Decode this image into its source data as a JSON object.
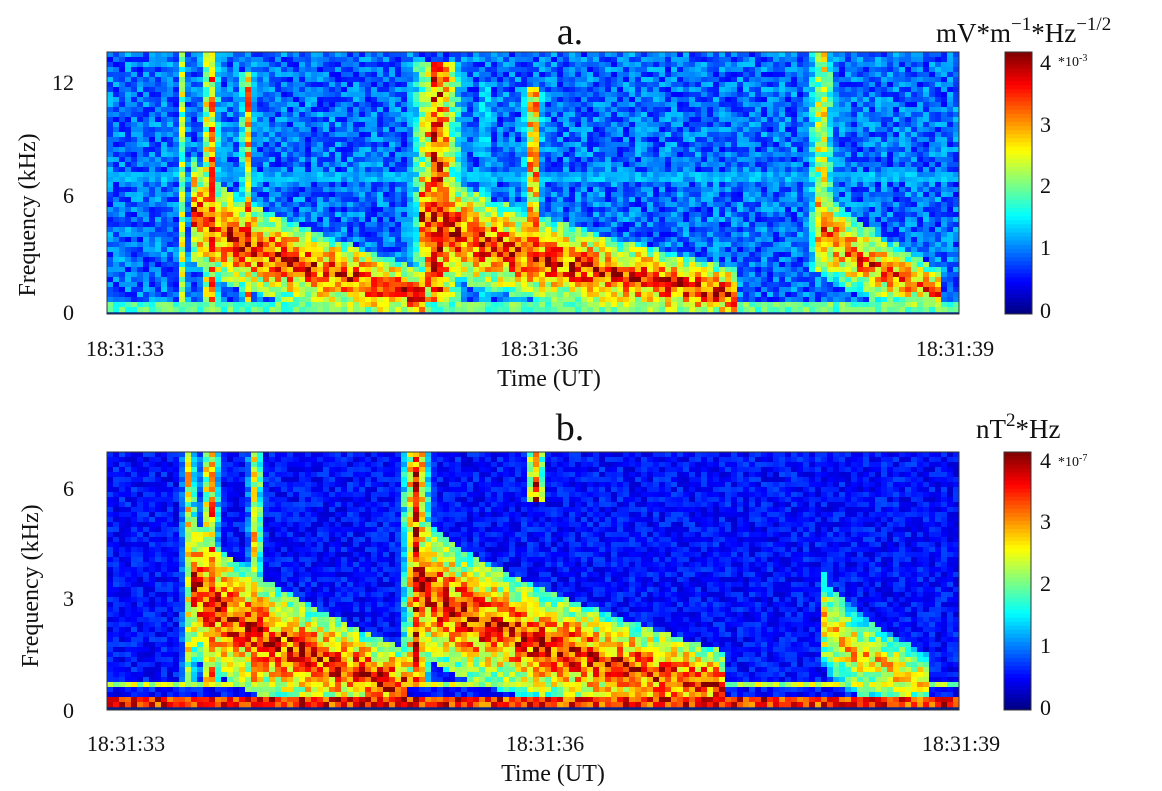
{
  "chart_data": [
    {
      "panel": "a",
      "type": "heatmap",
      "title": "a.",
      "xlabel": "Time (UT)",
      "ylabel": "Frequency (kHz)",
      "x_ticks": [
        "18:31:33",
        "18:31:36",
        "18:31:39"
      ],
      "xlim_seconds_utc": [
        "18:31:32.8",
        "18:31:39.0"
      ],
      "y_ticks": [
        0,
        6,
        12
      ],
      "ylim": [
        0,
        12.5
      ],
      "colorbar": {
        "unit_main": "mV",
        "unit_mid": "*m",
        "unit_exp1": "−1",
        "unit_after": "*Hz",
        "unit_exp2": "−1/2",
        "multiplier": "*10",
        "multiplier_exp": "-3",
        "ticks": [
          0,
          1,
          2,
          3,
          4
        ],
        "range": [
          0,
          4
        ],
        "colormap": "jet"
      },
      "background_level": 0.9,
      "features": [
        {
          "kind": "tower",
          "time": "18:31:33.35",
          "f_low": 0.5,
          "f_high": 12.5,
          "width_s": 0.06,
          "level": 2.6
        },
        {
          "kind": "tower",
          "time": "18:31:33.55",
          "f_low": 0.5,
          "f_high": 12.5,
          "width_s": 0.1,
          "level": 3.8
        },
        {
          "kind": "tower",
          "time": "18:31:33.82",
          "f_low": 0.5,
          "f_high": 11.5,
          "width_s": 0.08,
          "level": 3.4
        },
        {
          "kind": "tower",
          "time": "18:31:35.20",
          "f_low": 0.5,
          "f_high": 12.0,
          "width_s": 0.28,
          "level": 4.0
        },
        {
          "kind": "tower",
          "time": "18:31:35.55",
          "f_low": 0.5,
          "f_high": 11.0,
          "width_s": 0.06,
          "level": 2.2
        },
        {
          "kind": "tower",
          "time": "18:31:35.90",
          "f_low": 2.5,
          "f_high": 10.8,
          "width_s": 0.1,
          "level": 4.0
        },
        {
          "kind": "tower",
          "time": "18:31:38.00",
          "f_low": 2.0,
          "f_high": 12.5,
          "width_s": 0.16,
          "level": 3.0
        },
        {
          "kind": "descending",
          "t_start": "18:31:33.40",
          "t_end": "18:31:35.10",
          "f_start": 5.5,
          "f_end": 0.8,
          "level": 4.0
        },
        {
          "kind": "descending",
          "t_start": "18:31:35.05",
          "t_end": "18:31:37.40",
          "f_start": 5.5,
          "f_end": 0.8,
          "level": 4.0
        },
        {
          "kind": "descending",
          "t_start": "18:31:37.95",
          "t_end": "18:31:38.85",
          "f_start": 5.0,
          "f_end": 1.0,
          "level": 3.6
        },
        {
          "kind": "line",
          "freq": 6.5,
          "level": 1.4
        },
        {
          "kind": "line",
          "freq": 0.3,
          "level": 2.2
        }
      ]
    },
    {
      "panel": "b",
      "type": "heatmap",
      "title": "b.",
      "xlabel": "Time (UT)",
      "ylabel": "Frequency (kHz)",
      "x_ticks": [
        "18:31:33",
        "18:31:36",
        "18:31:39"
      ],
      "xlim_seconds_utc": [
        "18:31:32.8",
        "18:31:39.0"
      ],
      "y_ticks": [
        0,
        3,
        6
      ],
      "ylim": [
        0,
        6.9
      ],
      "colorbar": {
        "unit_main": "nT",
        "unit_exp1": "2",
        "unit_after": "*Hz",
        "multiplier": "*10",
        "multiplier_exp": "-7",
        "ticks": [
          0,
          1,
          2,
          3,
          4
        ],
        "range": [
          0,
          4
        ],
        "colormap": "jet"
      },
      "background_level": 0.55,
      "features": [
        {
          "kind": "tower",
          "time": "18:31:33.40",
          "f_low": 0.5,
          "f_high": 6.9,
          "width_s": 0.08,
          "level": 3.2
        },
        {
          "kind": "tower",
          "time": "18:31:33.55",
          "f_low": 0.5,
          "f_high": 6.9,
          "width_s": 0.1,
          "level": 3.8
        },
        {
          "kind": "tower",
          "time": "18:31:33.88",
          "f_low": 0.5,
          "f_high": 6.9,
          "width_s": 0.08,
          "level": 3.4
        },
        {
          "kind": "tower",
          "time": "18:31:35.05",
          "f_low": 0.5,
          "f_high": 6.9,
          "width_s": 0.16,
          "level": 4.0
        },
        {
          "kind": "tower",
          "time": "18:31:35.92",
          "f_low": 5.6,
          "f_high": 6.9,
          "width_s": 0.1,
          "level": 4.0
        },
        {
          "kind": "descending",
          "t_start": "18:31:33.40",
          "t_end": "18:31:35.00",
          "f_start": 3.8,
          "f_end": 0.5,
          "level": 4.0
        },
        {
          "kind": "descending",
          "t_start": "18:31:35.05",
          "t_end": "18:31:37.30",
          "f_start": 3.8,
          "f_end": 0.5,
          "level": 4.0
        },
        {
          "kind": "descending",
          "t_start": "18:31:38.00",
          "t_end": "18:31:38.80",
          "f_start": 2.6,
          "f_end": 0.6,
          "level": 3.2
        },
        {
          "kind": "line",
          "freq": 0.1,
          "level": 4.0
        },
        {
          "kind": "line",
          "freq": 0.6,
          "level": 2.6
        }
      ]
    }
  ]
}
